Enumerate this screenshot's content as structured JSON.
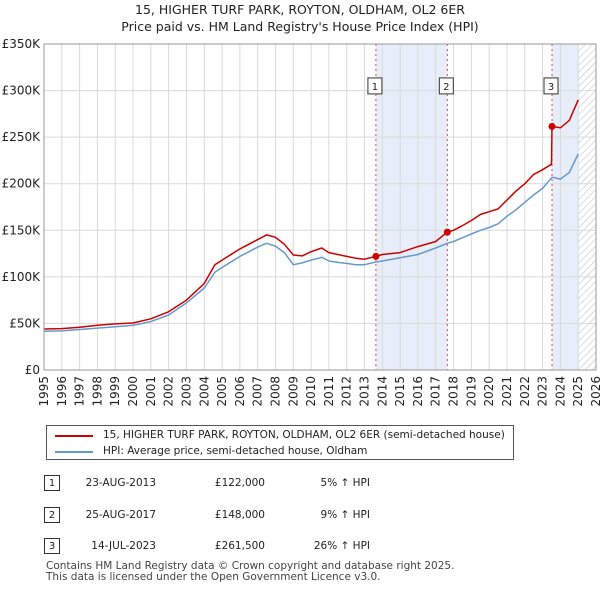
{
  "header": {
    "title_line1": "15, HIGHER TURF PARK, ROYTON, OLDHAM, OL2 6ER",
    "title_line2": "Price paid vs. HM Land Registry's House Price Index (HPI)"
  },
  "chart_data": {
    "type": "line",
    "title": "15, HIGHER TURF PARK, ROYTON, OLDHAM, OL2 6ER — Price paid vs. HM Land Registry's House Price Index (HPI)",
    "xlim": [
      1995,
      2026
    ],
    "ylim": [
      0,
      350000
    ],
    "x_ticks": [
      "1995",
      "1996",
      "1997",
      "1998",
      "1999",
      "2000",
      "2001",
      "2002",
      "2003",
      "2004",
      "2005",
      "2006",
      "2007",
      "2008",
      "2009",
      "2010",
      "2011",
      "2012",
      "2013",
      "2014",
      "2015",
      "2016",
      "2017",
      "2018",
      "2019",
      "2020",
      "2021",
      "2022",
      "2023",
      "2024",
      "2025",
      "2026"
    ],
    "y_ticks": [
      {
        "value": 0,
        "label": "£0"
      },
      {
        "value": 50000,
        "label": "£50K"
      },
      {
        "value": 100000,
        "label": "£100K"
      },
      {
        "value": 150000,
        "label": "£150K"
      },
      {
        "value": 200000,
        "label": "£200K"
      },
      {
        "value": 250000,
        "label": "£250K"
      },
      {
        "value": 300000,
        "label": "£300K"
      },
      {
        "value": 350000,
        "label": "£350K"
      }
    ],
    "shaded_ranges": [
      {
        "from": 2013.64,
        "to": 2017.65
      },
      {
        "from": 2023.53,
        "to": 2025.0
      }
    ],
    "hatched_range": {
      "from": 2025.0,
      "to": 2026.0
    },
    "series": [
      {
        "name": "15, HIGHER TURF PARK, ROYTON, OLDHAM, OL2 6ER (semi-detached house)",
        "color": "#cc0000",
        "points": [
          [
            1995.0,
            44000
          ],
          [
            1996.0,
            44500
          ],
          [
            1997.0,
            46000
          ],
          [
            1998.0,
            48000
          ],
          [
            1999.0,
            49500
          ],
          [
            2000.0,
            50500
          ],
          [
            2001.0,
            55000
          ],
          [
            2002.0,
            62500
          ],
          [
            2003.0,
            75000
          ],
          [
            2004.0,
            93000
          ],
          [
            2004.6,
            113000
          ],
          [
            2005.0,
            118000
          ],
          [
            2006.0,
            130000
          ],
          [
            2007.0,
            140000
          ],
          [
            2007.5,
            145000
          ],
          [
            2008.0,
            142500
          ],
          [
            2008.5,
            135000
          ],
          [
            2009.0,
            123500
          ],
          [
            2009.5,
            122500
          ],
          [
            2010.0,
            127000
          ],
          [
            2010.6,
            131000
          ],
          [
            2011.0,
            126000
          ],
          [
            2011.5,
            124000
          ],
          [
            2012.0,
            122000
          ],
          [
            2012.5,
            120000
          ],
          [
            2013.0,
            119000
          ],
          [
            2013.64,
            122000
          ],
          [
            2014.0,
            124000
          ],
          [
            2015.0,
            126000
          ],
          [
            2016.0,
            132500
          ],
          [
            2017.0,
            138000
          ],
          [
            2017.65,
            148000
          ],
          [
            2018.0,
            150000
          ],
          [
            2018.5,
            155000
          ],
          [
            2019.0,
            160500
          ],
          [
            2019.5,
            167000
          ],
          [
            2020.0,
            170000
          ],
          [
            2020.5,
            173000
          ],
          [
            2021.0,
            182500
          ],
          [
            2021.5,
            192000
          ],
          [
            2022.0,
            200000
          ],
          [
            2022.5,
            210000
          ],
          [
            2023.0,
            215000
          ],
          [
            2023.5,
            221000
          ],
          [
            2023.53,
            261500
          ],
          [
            2024.0,
            260000
          ],
          [
            2024.5,
            268000
          ],
          [
            2025.0,
            290000
          ]
        ]
      },
      {
        "name": "HPI: Average price, semi-detached house, Oldham",
        "color": "#6699cc",
        "points": [
          [
            1995.0,
            41500
          ],
          [
            1996.0,
            42000
          ],
          [
            1997.0,
            43500
          ],
          [
            1998.0,
            45000
          ],
          [
            1999.0,
            46500
          ],
          [
            2000.0,
            48000
          ],
          [
            2001.0,
            52000
          ],
          [
            2002.0,
            59000
          ],
          [
            2003.0,
            72000
          ],
          [
            2004.0,
            88000
          ],
          [
            2004.6,
            105000
          ],
          [
            2005.0,
            110000
          ],
          [
            2006.0,
            122000
          ],
          [
            2007.0,
            132000
          ],
          [
            2007.5,
            136000
          ],
          [
            2008.0,
            133000
          ],
          [
            2008.5,
            126000
          ],
          [
            2009.0,
            113000
          ],
          [
            2009.5,
            115000
          ],
          [
            2010.0,
            118000
          ],
          [
            2010.6,
            121000
          ],
          [
            2011.0,
            117000
          ],
          [
            2011.5,
            115500
          ],
          [
            2012.0,
            114500
          ],
          [
            2012.5,
            113000
          ],
          [
            2013.0,
            113000
          ],
          [
            2013.64,
            116000
          ],
          [
            2014.0,
            117000
          ],
          [
            2015.0,
            120500
          ],
          [
            2016.0,
            124000
          ],
          [
            2017.0,
            131000
          ],
          [
            2017.65,
            136000
          ],
          [
            2018.0,
            138000
          ],
          [
            2018.5,
            142000
          ],
          [
            2019.0,
            146000
          ],
          [
            2019.5,
            150000
          ],
          [
            2020.0,
            153000
          ],
          [
            2020.5,
            157000
          ],
          [
            2021.0,
            165000
          ],
          [
            2021.5,
            172000
          ],
          [
            2022.0,
            180000
          ],
          [
            2022.5,
            188000
          ],
          [
            2023.0,
            195000
          ],
          [
            2023.53,
            207000
          ],
          [
            2024.0,
            205000
          ],
          [
            2024.5,
            212000
          ],
          [
            2025.0,
            232000
          ]
        ]
      }
    ],
    "sale_markers": [
      {
        "n": "1",
        "x": 2013.64,
        "value": 122000
      },
      {
        "n": "2",
        "x": 2017.65,
        "value": 148000
      },
      {
        "n": "3",
        "x": 2023.53,
        "value": 261500
      }
    ]
  },
  "legend": {
    "property_label": "15, HIGHER TURF PARK, ROYTON, OLDHAM, OL2 6ER (semi-detached house)",
    "hpi_label": "HPI: Average price, semi-detached house, Oldham",
    "property_color": "#cc0000",
    "hpi_color": "#6699cc"
  },
  "transactions": [
    {
      "n": "1",
      "date": "23-AUG-2013",
      "price": "£122,000",
      "hpi": "5% ↑ HPI"
    },
    {
      "n": "2",
      "date": "25-AUG-2017",
      "price": "£148,000",
      "hpi": "9% ↑ HPI"
    },
    {
      "n": "3",
      "date": "14-JUL-2023",
      "price": "£261,500",
      "hpi": "26% ↑ HPI"
    }
  ],
  "footer": {
    "line1": "Contains HM Land Registry data © Crown copyright and database right 2025.",
    "line2": "This data is licensed under the Open Government Licence v3.0."
  }
}
